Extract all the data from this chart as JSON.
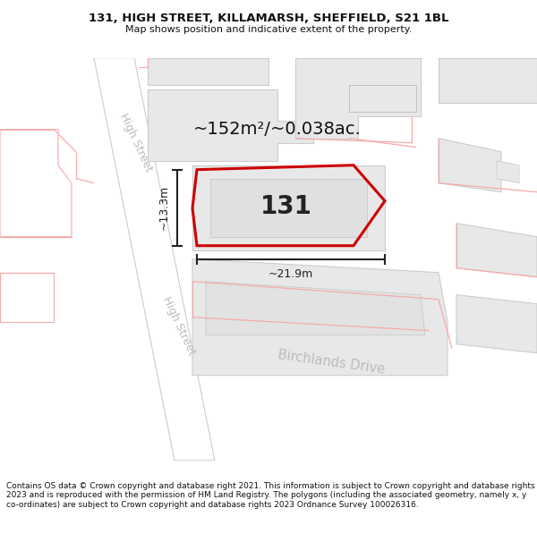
{
  "title": "131, HIGH STREET, KILLAMARSH, SHEFFIELD, S21 1BL",
  "subtitle": "Map shows position and indicative extent of the property.",
  "footer": "Contains OS data © Crown copyright and database right 2021. This information is subject to Crown copyright and database rights 2023 and is reproduced with the permission of HM Land Registry. The polygons (including the associated geometry, namely x, y co-ordinates) are subject to Crown copyright and database rights 2023 Ordnance Survey 100026316.",
  "area_text": "~152m²/~0.038ac.",
  "label_131": "131",
  "width_label": "~21.9m",
  "height_label": "~13.3m",
  "street1": "High Street",
  "street2": "High Street",
  "street3": "Birchlands Drive",
  "map_bg": "#ffffff",
  "building_fill": "#e8e8e8",
  "building_edge": "#cccccc",
  "road_fill": "#ffffff",
  "road_edge": "#cccccc",
  "pink": "#f5aaaa",
  "red": "#cc0000",
  "dim_color": "#222222",
  "street_color": "#bbbbbb",
  "title_size": 9.5,
  "subtitle_size": 8,
  "footer_size": 6.5,
  "area_size": 14,
  "label_size": 20,
  "dim_size": 9,
  "street_size": 9,
  "birchlands_size": 10.5
}
